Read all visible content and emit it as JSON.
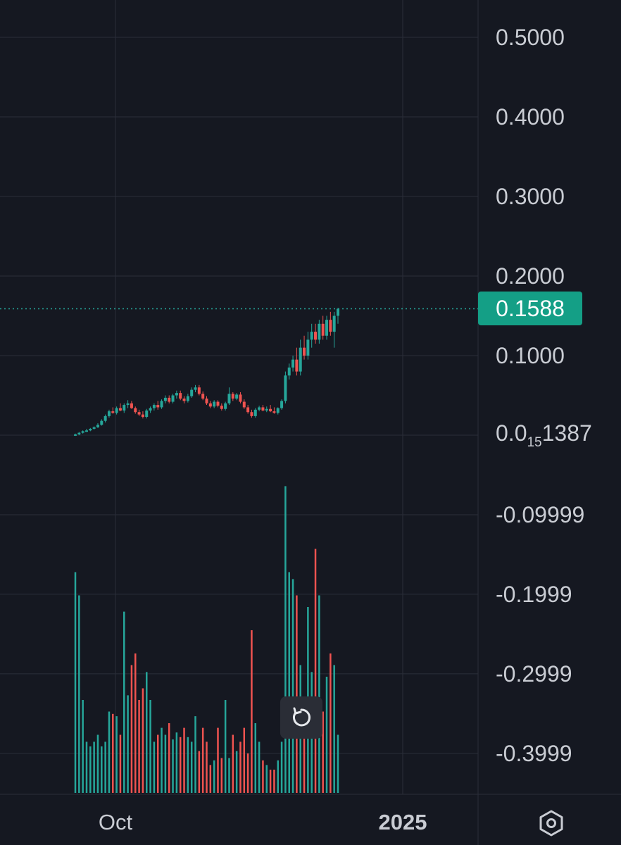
{
  "colors": {
    "background": "#151821",
    "grid": "#2a2e39",
    "up": "#26a69a",
    "down": "#ef5350",
    "badge": "#149f86",
    "axis_text": "#c9ccd3"
  },
  "price_axis": {
    "labels": [
      "0.5000",
      "0.4000",
      "0.3000",
      "0.2000",
      "0.1000",
      "-0.09999",
      "-0.1999",
      "-0.2999",
      "-0.3999"
    ],
    "values": [
      0.5,
      0.4,
      0.3,
      0.2,
      0.1,
      -0.09999,
      -0.1999,
      -0.2999,
      -0.3999
    ],
    "zero_label": {
      "base": "0.0",
      "sub": "15",
      "rest": "1387"
    }
  },
  "last_price": {
    "label": "0.1588",
    "value": 0.1588
  },
  "time_axis": {
    "labels": [
      {
        "text": "Oct",
        "bold": false
      },
      {
        "text": "2025",
        "bold": true
      }
    ]
  },
  "icons": {
    "reset": "reset-rotate-icon",
    "settings": "settings-hexagon-icon"
  },
  "chart_data": {
    "type": "candlestick",
    "ylim": [
      -0.45,
      0.55
    ],
    "grid": true,
    "last_value": 0.1588,
    "candles": [
      {
        "o": 0.0,
        "h": 0.002,
        "l": -0.001,
        "c": 0.001
      },
      {
        "o": 0.001,
        "h": 0.004,
        "l": 0.0,
        "c": 0.003
      },
      {
        "o": 0.003,
        "h": 0.006,
        "l": 0.002,
        "c": 0.005
      },
      {
        "o": 0.005,
        "h": 0.008,
        "l": 0.004,
        "c": 0.006
      },
      {
        "o": 0.006,
        "h": 0.009,
        "l": 0.005,
        "c": 0.008
      },
      {
        "o": 0.008,
        "h": 0.011,
        "l": 0.007,
        "c": 0.01
      },
      {
        "o": 0.01,
        "h": 0.015,
        "l": 0.009,
        "c": 0.013
      },
      {
        "o": 0.013,
        "h": 0.02,
        "l": 0.012,
        "c": 0.018
      },
      {
        "o": 0.018,
        "h": 0.026,
        "l": 0.016,
        "c": 0.024
      },
      {
        "o": 0.024,
        "h": 0.032,
        "l": 0.022,
        "c": 0.03
      },
      {
        "o": 0.03,
        "h": 0.035,
        "l": 0.027,
        "c": 0.028
      },
      {
        "o": 0.028,
        "h": 0.036,
        "l": 0.026,
        "c": 0.034
      },
      {
        "o": 0.034,
        "h": 0.04,
        "l": 0.03,
        "c": 0.031
      },
      {
        "o": 0.031,
        "h": 0.04,
        "l": 0.028,
        "c": 0.038
      },
      {
        "o": 0.038,
        "h": 0.044,
        "l": 0.034,
        "c": 0.04
      },
      {
        "o": 0.04,
        "h": 0.043,
        "l": 0.033,
        "c": 0.034
      },
      {
        "o": 0.034,
        "h": 0.036,
        "l": 0.027,
        "c": 0.029
      },
      {
        "o": 0.029,
        "h": 0.032,
        "l": 0.024,
        "c": 0.026
      },
      {
        "o": 0.026,
        "h": 0.03,
        "l": 0.021,
        "c": 0.023
      },
      {
        "o": 0.023,
        "h": 0.033,
        "l": 0.021,
        "c": 0.031
      },
      {
        "o": 0.031,
        "h": 0.036,
        "l": 0.028,
        "c": 0.034
      },
      {
        "o": 0.034,
        "h": 0.04,
        "l": 0.031,
        "c": 0.038
      },
      {
        "o": 0.038,
        "h": 0.043,
        "l": 0.032,
        "c": 0.035
      },
      {
        "o": 0.035,
        "h": 0.045,
        "l": 0.033,
        "c": 0.043
      },
      {
        "o": 0.043,
        "h": 0.05,
        "l": 0.04,
        "c": 0.047
      },
      {
        "o": 0.047,
        "h": 0.05,
        "l": 0.04,
        "c": 0.042
      },
      {
        "o": 0.042,
        "h": 0.052,
        "l": 0.04,
        "c": 0.05
      },
      {
        "o": 0.05,
        "h": 0.056,
        "l": 0.046,
        "c": 0.053
      },
      {
        "o": 0.053,
        "h": 0.056,
        "l": 0.044,
        "c": 0.046
      },
      {
        "o": 0.046,
        "h": 0.049,
        "l": 0.04,
        "c": 0.043
      },
      {
        "o": 0.043,
        "h": 0.052,
        "l": 0.041,
        "c": 0.049
      },
      {
        "o": 0.049,
        "h": 0.06,
        "l": 0.047,
        "c": 0.057
      },
      {
        "o": 0.057,
        "h": 0.063,
        "l": 0.054,
        "c": 0.06
      },
      {
        "o": 0.06,
        "h": 0.063,
        "l": 0.05,
        "c": 0.052
      },
      {
        "o": 0.052,
        "h": 0.055,
        "l": 0.044,
        "c": 0.046
      },
      {
        "o": 0.046,
        "h": 0.049,
        "l": 0.038,
        "c": 0.04
      },
      {
        "o": 0.04,
        "h": 0.043,
        "l": 0.034,
        "c": 0.036
      },
      {
        "o": 0.036,
        "h": 0.044,
        "l": 0.034,
        "c": 0.042
      },
      {
        "o": 0.042,
        "h": 0.044,
        "l": 0.035,
        "c": 0.037
      },
      {
        "o": 0.037,
        "h": 0.04,
        "l": 0.031,
        "c": 0.033
      },
      {
        "o": 0.033,
        "h": 0.042,
        "l": 0.031,
        "c": 0.04
      },
      {
        "o": 0.04,
        "h": 0.06,
        "l": 0.038,
        "c": 0.052
      },
      {
        "o": 0.052,
        "h": 0.054,
        "l": 0.043,
        "c": 0.046
      },
      {
        "o": 0.046,
        "h": 0.053,
        "l": 0.044,
        "c": 0.051
      },
      {
        "o": 0.051,
        "h": 0.054,
        "l": 0.04,
        "c": 0.042
      },
      {
        "o": 0.042,
        "h": 0.045,
        "l": 0.033,
        "c": 0.035
      },
      {
        "o": 0.035,
        "h": 0.038,
        "l": 0.027,
        "c": 0.029
      },
      {
        "o": 0.029,
        "h": 0.032,
        "l": 0.022,
        "c": 0.024
      },
      {
        "o": 0.024,
        "h": 0.034,
        "l": 0.022,
        "c": 0.032
      },
      {
        "o": 0.032,
        "h": 0.037,
        "l": 0.03,
        "c": 0.035
      },
      {
        "o": 0.035,
        "h": 0.038,
        "l": 0.03,
        "c": 0.031
      },
      {
        "o": 0.031,
        "h": 0.036,
        "l": 0.029,
        "c": 0.033
      },
      {
        "o": 0.033,
        "h": 0.038,
        "l": 0.029,
        "c": 0.03
      },
      {
        "o": 0.03,
        "h": 0.035,
        "l": 0.027,
        "c": 0.028
      },
      {
        "o": 0.028,
        "h": 0.035,
        "l": 0.026,
        "c": 0.034
      },
      {
        "o": 0.034,
        "h": 0.045,
        "l": 0.032,
        "c": 0.043
      },
      {
        "o": 0.043,
        "h": 0.08,
        "l": 0.04,
        "c": 0.075
      },
      {
        "o": 0.075,
        "h": 0.09,
        "l": 0.07,
        "c": 0.085
      },
      {
        "o": 0.085,
        "h": 0.1,
        "l": 0.08,
        "c": 0.095
      },
      {
        "o": 0.095,
        "h": 0.11,
        "l": 0.075,
        "c": 0.08
      },
      {
        "o": 0.08,
        "h": 0.12,
        "l": 0.075,
        "c": 0.11
      },
      {
        "o": 0.11,
        "h": 0.125,
        "l": 0.095,
        "c": 0.1
      },
      {
        "o": 0.1,
        "h": 0.13,
        "l": 0.095,
        "c": 0.12
      },
      {
        "o": 0.12,
        "h": 0.14,
        "l": 0.11,
        "c": 0.13
      },
      {
        "o": 0.13,
        "h": 0.14,
        "l": 0.115,
        "c": 0.12
      },
      {
        "o": 0.12,
        "h": 0.145,
        "l": 0.115,
        "c": 0.14
      },
      {
        "o": 0.14,
        "h": 0.15,
        "l": 0.12,
        "c": 0.125
      },
      {
        "o": 0.125,
        "h": 0.15,
        "l": 0.12,
        "c": 0.145
      },
      {
        "o": 0.145,
        "h": 0.155,
        "l": 0.125,
        "c": 0.13
      },
      {
        "o": 0.13,
        "h": 0.155,
        "l": 0.11,
        "c": 0.15
      },
      {
        "o": 0.15,
        "h": 0.16,
        "l": 0.14,
        "c": 0.1588
      }
    ],
    "volume_relative": [
      0.95,
      0.85,
      0.4,
      0.22,
      0.2,
      0.22,
      0.25,
      0.2,
      0.22,
      0.35,
      0.34,
      0.33,
      0.25,
      0.78,
      0.42,
      0.55,
      0.6,
      0.4,
      0.45,
      0.52,
      0.4,
      0.22,
      0.25,
      0.28,
      0.25,
      0.3,
      0.23,
      0.26,
      0.24,
      0.28,
      0.24,
      0.22,
      0.33,
      0.18,
      0.28,
      0.22,
      0.12,
      0.14,
      0.28,
      0.15,
      0.4,
      0.15,
      0.25,
      0.18,
      0.22,
      0.28,
      0.17,
      0.7,
      0.3,
      0.22,
      0.14,
      0.12,
      0.1,
      0.1,
      0.14,
      0.22,
      1.32,
      0.95,
      0.92,
      0.85,
      0.55,
      0.35,
      0.8,
      0.52,
      1.05,
      0.85,
      0.35,
      0.5,
      0.6,
      0.55,
      0.25
    ]
  }
}
